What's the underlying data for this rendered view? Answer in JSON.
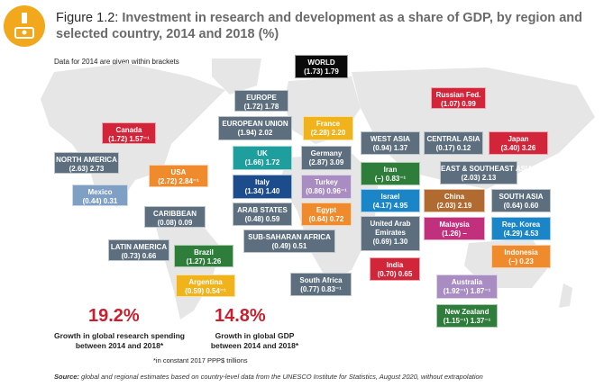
{
  "figure_label": "Figure 1.2:",
  "title": "Investment in research and development as a share of GDP, by region and selected country, 2014 and 2018 (%)",
  "subnote": "Data for 2014 are given within brackets",
  "colors": {
    "accent": "#c7202f",
    "logo": "#f2a81d"
  },
  "regions": [
    {
      "name": "WORLD",
      "value": "(1.73) 1.79"
    },
    {
      "name": "EUROPE",
      "value": "(1.72) 1.78"
    },
    {
      "name": "Russian Fed.",
      "value": "(1.07) 0.99"
    },
    {
      "name": "Canada",
      "value": "(1.72) 1.57⁻¹"
    },
    {
      "name": "EUROPEAN UNION",
      "value": "(1.94) 2.02"
    },
    {
      "name": "France",
      "value": "(2.28) 2.20"
    },
    {
      "name": "WEST ASIA",
      "value": "(0.94) 1.37"
    },
    {
      "name": "CENTRAL ASIA",
      "value": "(0.17) 0.12"
    },
    {
      "name": "Japan",
      "value": "(3.40) 3.26"
    },
    {
      "name": "NORTH AMERICA",
      "value": "(2.63) 2.73"
    },
    {
      "name": "UK",
      "value": "(1.66) 1.72"
    },
    {
      "name": "Germany",
      "value": "(2.87) 3.09"
    },
    {
      "name": "Iran",
      "value": "(–) 0.83⁻¹"
    },
    {
      "name": "EAST & SOUTHEAST ASIA",
      "value": "(2.03) 2.13"
    },
    {
      "name": "USA",
      "value": "(2.72) 2.84⁻¹"
    },
    {
      "name": "Italy",
      "value": "(1.34) 1.40"
    },
    {
      "name": "Turkey",
      "value": "(0.86) 0.96⁻¹"
    },
    {
      "name": "Israel",
      "value": "(4.17) 4.95"
    },
    {
      "name": "China",
      "value": "(2.03) 2.19"
    },
    {
      "name": "SOUTH ASIA",
      "value": "(0.64) 0.60"
    },
    {
      "name": "Mexico",
      "value": "(0.44) 0.31"
    },
    {
      "name": "ARAB STATES",
      "value": "(0.48) 0.59"
    },
    {
      "name": "Egypt",
      "value": "(0.64) 0.72"
    },
    {
      "name": "Rep. Korea",
      "value": "(4.29) 4.53"
    },
    {
      "name": "CARIBBEAN",
      "value": "(0.08) 0.09"
    },
    {
      "name": "United Arab Emirates",
      "value": "(0.69) 1.30"
    },
    {
      "name": "Malaysia",
      "value": "(1.26) –"
    },
    {
      "name": "SUB-SAHARAN AFRICA",
      "value": "(0.49) 0.51"
    },
    {
      "name": "Indonesia",
      "value": "(–) 0.23"
    },
    {
      "name": "LATIN AMERICA",
      "value": "(0.73) 0.66"
    },
    {
      "name": "Brazil",
      "value": "(1.27) 1.26"
    },
    {
      "name": "India",
      "value": "(0.70) 0.65"
    },
    {
      "name": "Argentina",
      "value": "(0.59) 0.54⁻¹"
    },
    {
      "name": "South Africa",
      "value": "(0.77) 0.83⁻¹"
    },
    {
      "name": "Australia",
      "value": "(1.92⁻¹) 1.87⁻¹"
    },
    {
      "name": "New Zealand",
      "value": "(1.15⁻¹) 1.37⁻¹"
    }
  ],
  "stats": [
    {
      "value": "19.2%",
      "label_line1": "Growth in global research spending",
      "label_line2": "between 2014 and 2018*"
    },
    {
      "value": "14.8%",
      "label_line1": "Growth in global GDP",
      "label_line2": "between 2014 and 2018*"
    }
  ],
  "footnote": "*in constant 2017 PPP$ trillions",
  "source_label": "Source:",
  "source_text": "global and regional estimates based on country-level data from the UNESCO Institute for Statistics, August 2020, without extrapolation"
}
